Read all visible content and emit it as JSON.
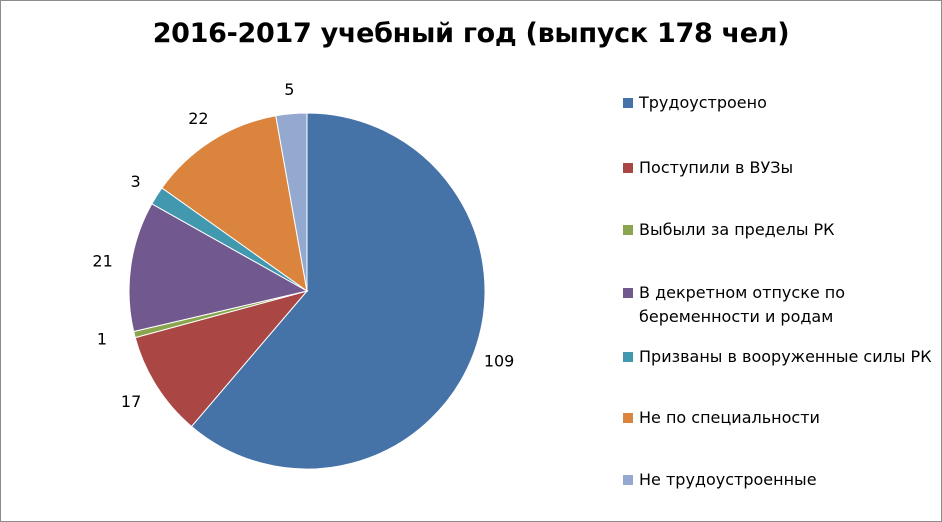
{
  "chart_data": {
    "type": "pie",
    "title": "2016-2017 учебный год (выпуск 178 чел)",
    "categories": [
      "Трудоустроено",
      "Поступили в ВУЗы",
      "Выбыли за пределы РК",
      "В декретном отпуске по беременности и родам",
      "Призваны в вооруженные силы РК",
      "Не по специальности",
      "Не трудоустроенные"
    ],
    "values": [
      109,
      17,
      1,
      21,
      3,
      22,
      5
    ],
    "colors": [
      "#4572A7",
      "#AA4643",
      "#89A54E",
      "#71588F",
      "#4198AF",
      "#DB843D",
      "#93A9CF"
    ],
    "data_labels": [
      "109",
      "17",
      "1",
      "21",
      "3",
      "22",
      "5"
    ],
    "legend_position": "right",
    "start_angle": "12 o'clock",
    "direction": "clockwise"
  }
}
